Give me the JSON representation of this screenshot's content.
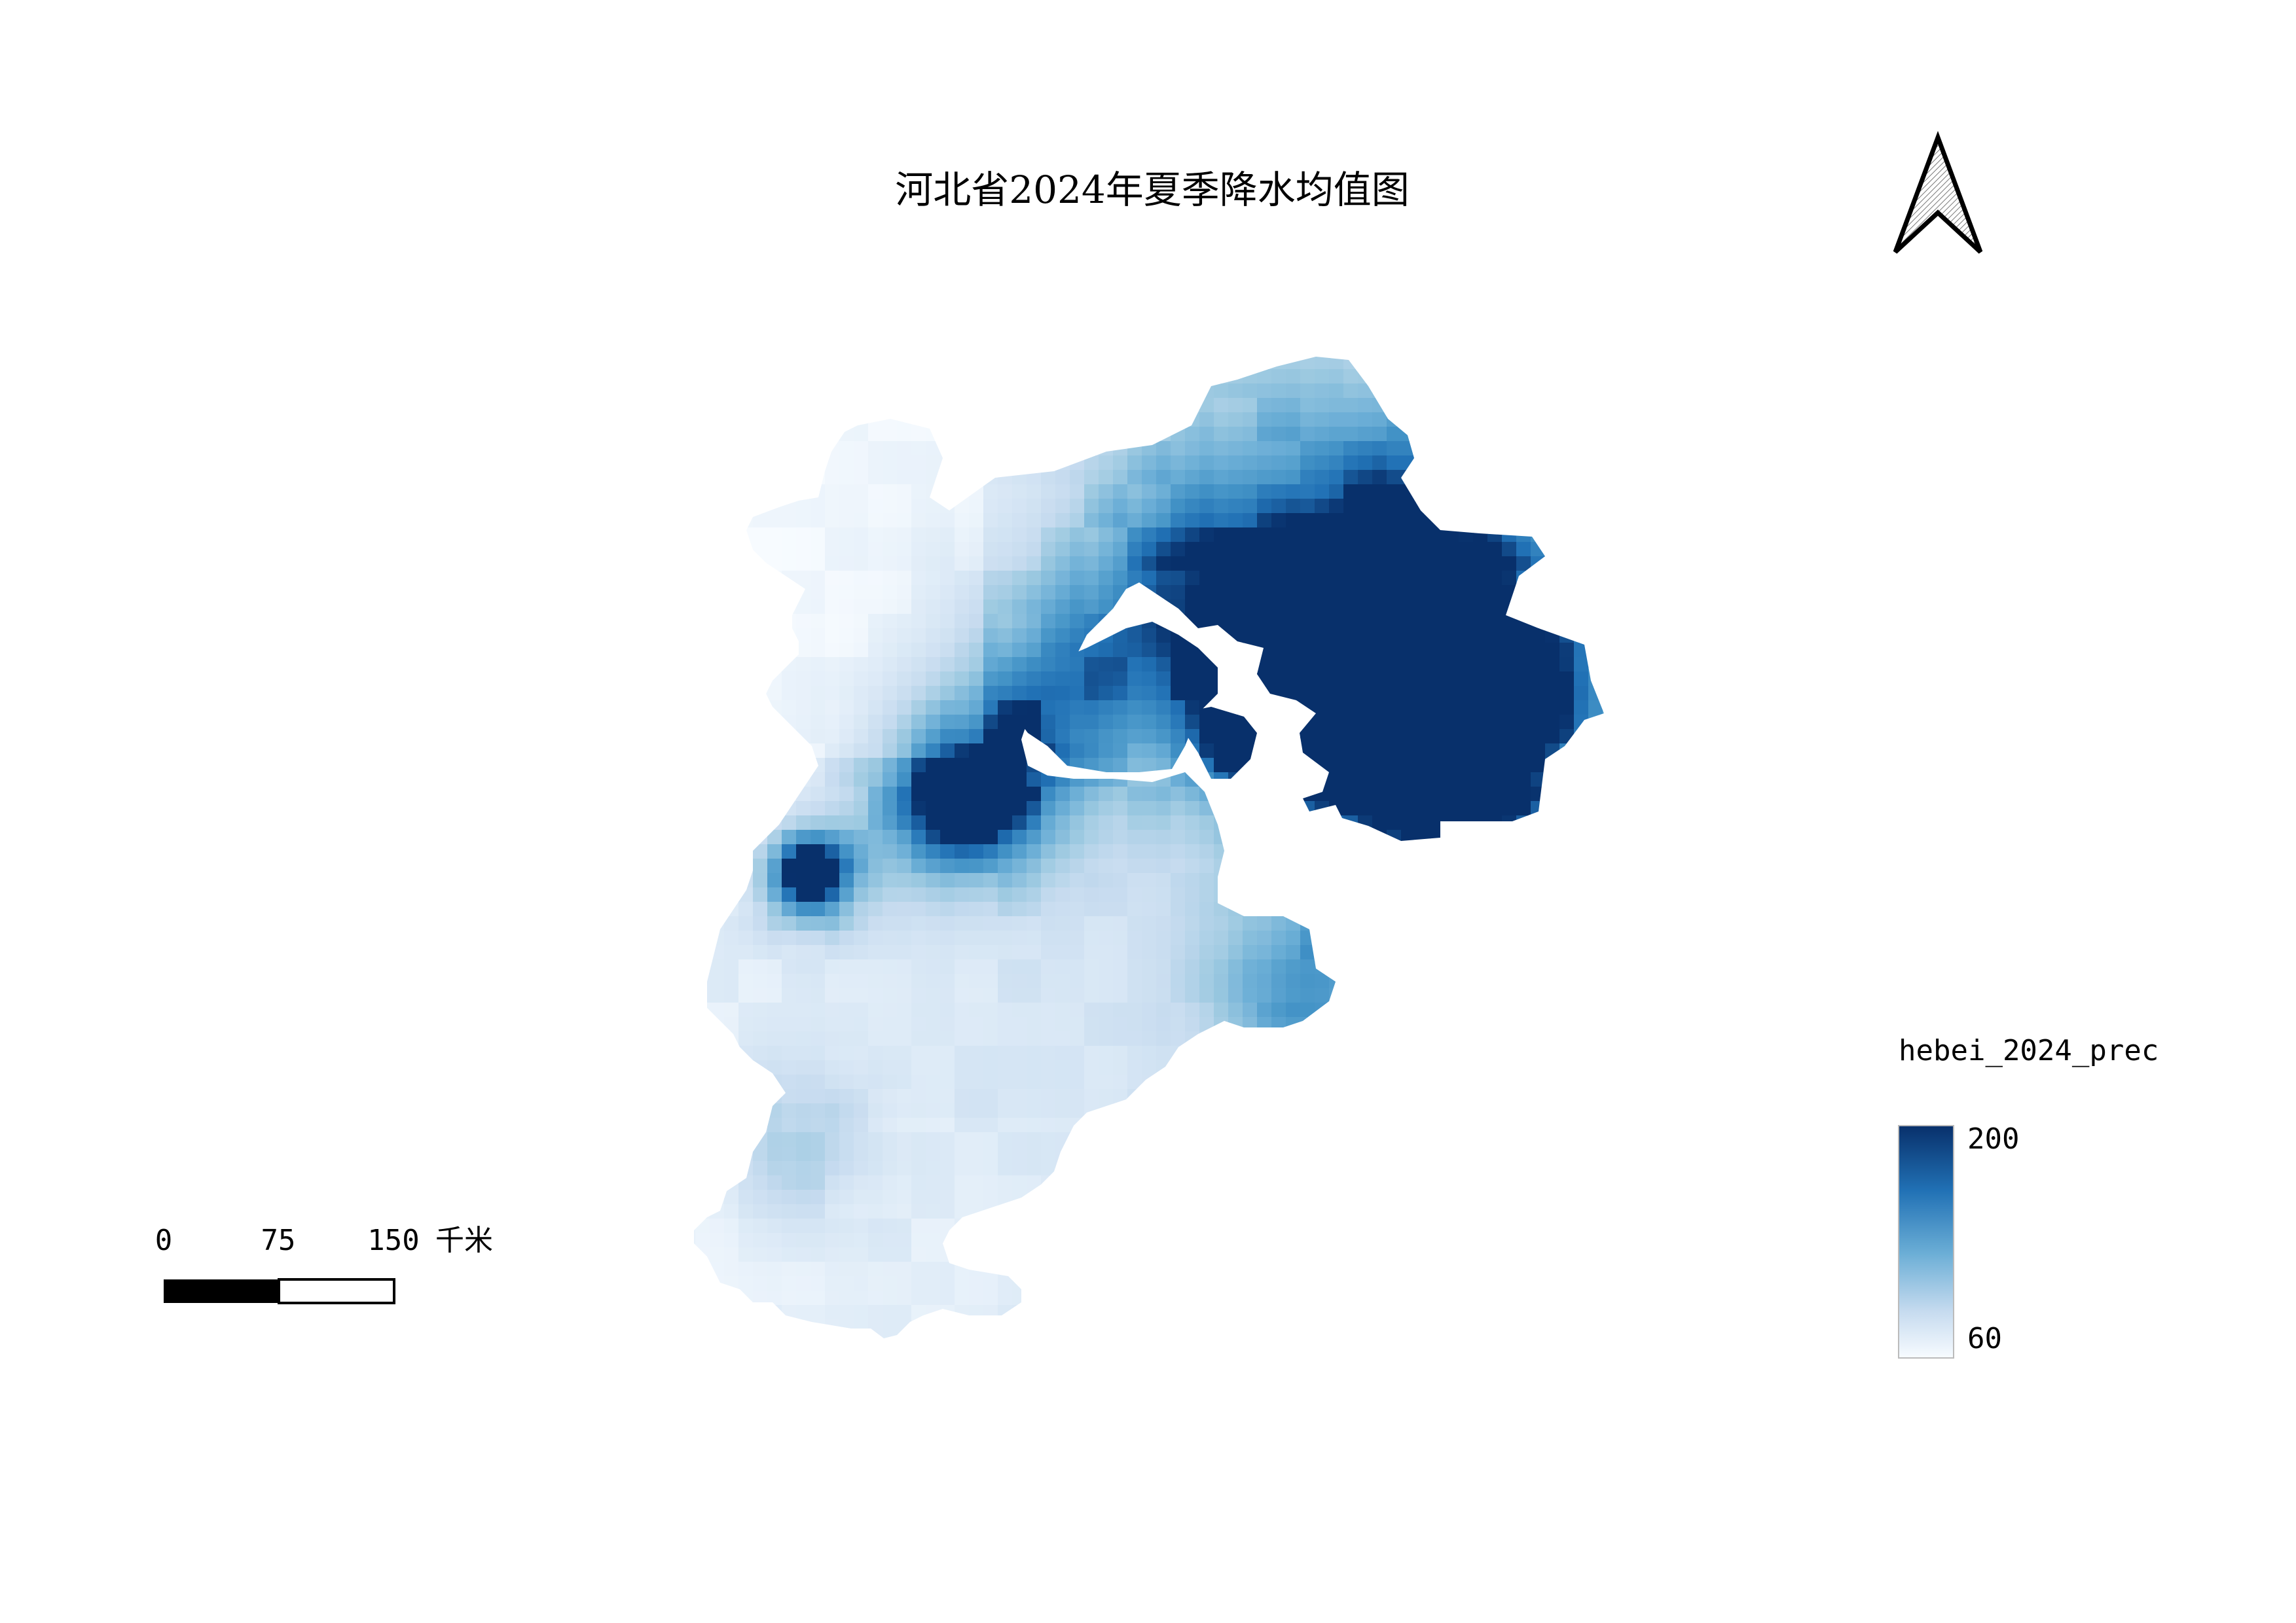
{
  "map": {
    "title": "河北省2024年夏季降水均值图"
  },
  "north_arrow": {
    "icon": "north-arrow-icon"
  },
  "legend": {
    "layer_name": "hebei_2024_prec",
    "max_label": "200",
    "min_label": "60",
    "color_high": "#08306b",
    "color_mid": "#4292c6",
    "color_low": "#f7fbff"
  },
  "scale_bar": {
    "tick_0": "0",
    "tick_1": "75",
    "tick_2": "150",
    "unit": "千米"
  },
  "precipitation": {
    "min": 60,
    "max": 200
  }
}
